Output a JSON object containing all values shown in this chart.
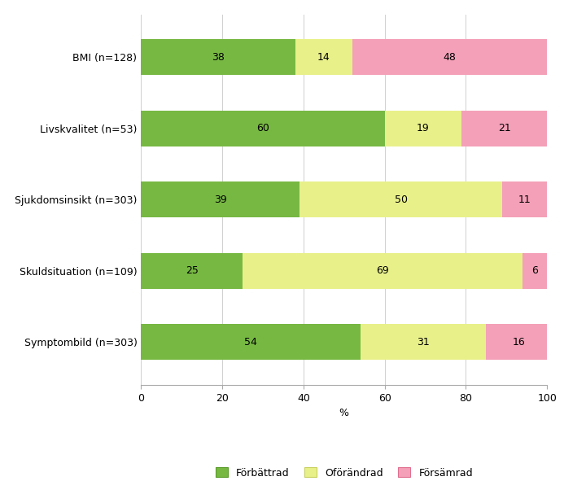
{
  "categories": [
    "Symptombild (n=303)",
    "Skuldsituation (n=109)",
    "Sjukdomsinsikt (n=303)",
    "Livskvalitet (n=53)",
    "BMI (n=128)"
  ],
  "forbattrad": [
    54,
    25,
    39,
    60,
    38
  ],
  "oforandrad": [
    31,
    69,
    50,
    19,
    14
  ],
  "forsamrad": [
    16,
    6,
    11,
    21,
    48
  ],
  "color_forbattrad": "#77b843",
  "color_oforandrad": "#e8f08a",
  "color_forsamrad": "#f4a0b8",
  "xlabel": "%",
  "xlim": [
    0,
    100
  ],
  "xticks": [
    0,
    20,
    40,
    60,
    80,
    100
  ],
  "legend_labels": [
    "Förbättrad",
    "Oförändrad",
    "Försämrad"
  ],
  "legend_edge_colors": [
    "#5a9a2a",
    "#c8d060",
    "#e07090"
  ],
  "bar_height": 0.5,
  "figsize": [
    6.93,
    5.91
  ],
  "dpi": 100,
  "background_color": "#ffffff",
  "grid_color": "#d0d0d0",
  "label_fontsize": 9,
  "tick_fontsize": 9,
  "legend_fontsize": 9,
  "value_fontsize": 9
}
